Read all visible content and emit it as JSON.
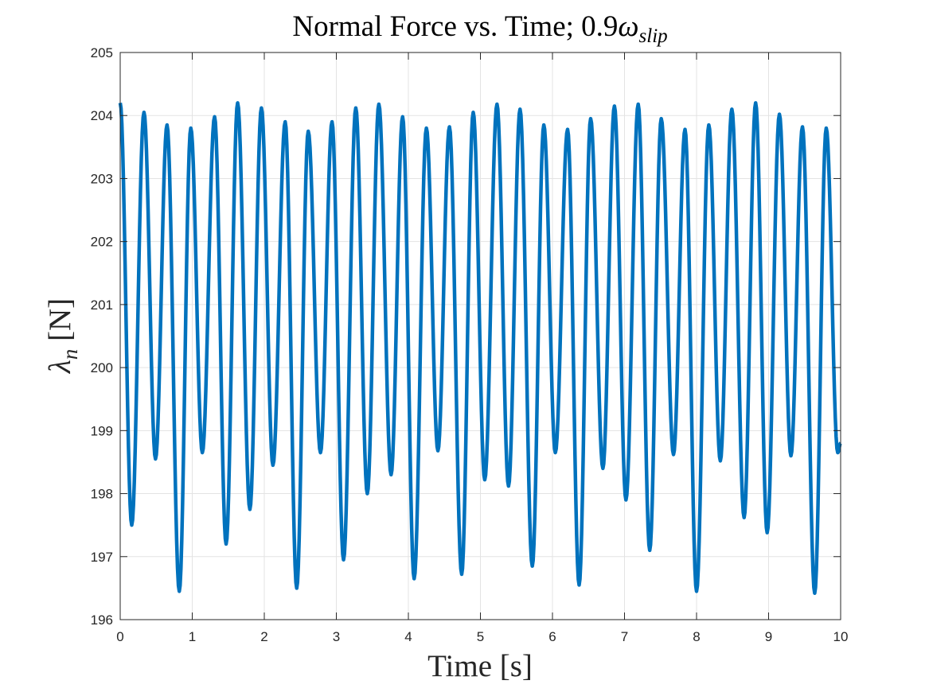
{
  "chart_data": {
    "type": "line",
    "title_parts": {
      "main": "Normal Force vs. Time; 0.9",
      "greek": "ω",
      "subscript": "slip"
    },
    "xlabel": "Time [s]",
    "ylabel_parts": {
      "greek": "λ",
      "subscript": "n",
      "unit": "[N]"
    },
    "xlim": [
      0,
      10
    ],
    "ylim": [
      196,
      205
    ],
    "xticks": [
      "0",
      "1",
      "2",
      "3",
      "4",
      "5",
      "6",
      "7",
      "8",
      "9",
      "10"
    ],
    "yticks": [
      "196",
      "197",
      "198",
      "199",
      "200",
      "201",
      "202",
      "203",
      "204",
      "205"
    ],
    "grid": true,
    "line_color": "#0072BD",
    "series": [
      {
        "x": [
          0.0,
          0.16,
          0.33,
          0.49,
          0.65,
          0.82,
          0.98,
          1.14,
          1.31,
          1.47,
          1.63,
          1.8,
          1.96,
          2.12,
          2.29,
          2.45,
          2.61,
          2.78,
          2.94,
          3.1,
          3.27,
          3.43,
          3.59,
          3.76,
          3.92,
          4.08,
          4.25,
          4.41,
          4.57,
          4.74,
          4.9,
          5.06,
          5.23,
          5.39,
          5.55,
          5.72,
          5.88,
          6.04,
          6.21,
          6.37,
          6.53,
          6.7,
          6.86,
          7.02,
          7.19,
          7.35,
          7.51,
          7.68,
          7.84,
          8.0,
          8.17,
          8.33,
          8.49,
          8.66,
          8.82,
          8.98,
          9.15,
          9.31,
          9.47,
          9.64,
          9.8,
          9.96,
          10.0
        ],
        "y": [
          204.2,
          197.5,
          204.05,
          198.55,
          203.85,
          196.45,
          203.8,
          198.65,
          203.98,
          197.2,
          204.2,
          197.75,
          204.12,
          198.45,
          203.9,
          196.5,
          203.75,
          198.65,
          203.9,
          196.95,
          204.12,
          198.0,
          204.18,
          198.3,
          203.98,
          196.65,
          203.8,
          198.68,
          203.82,
          196.72,
          204.05,
          198.22,
          204.18,
          198.12,
          204.1,
          196.85,
          203.85,
          198.65,
          203.78,
          196.55,
          203.95,
          198.4,
          204.15,
          197.9,
          204.18,
          197.1,
          203.95,
          198.62,
          203.78,
          196.45,
          203.85,
          198.52,
          204.1,
          197.62,
          204.2,
          197.38,
          204.02,
          198.6,
          203.82,
          196.42,
          203.8,
          198.65,
          198.8
        ]
      }
    ]
  }
}
